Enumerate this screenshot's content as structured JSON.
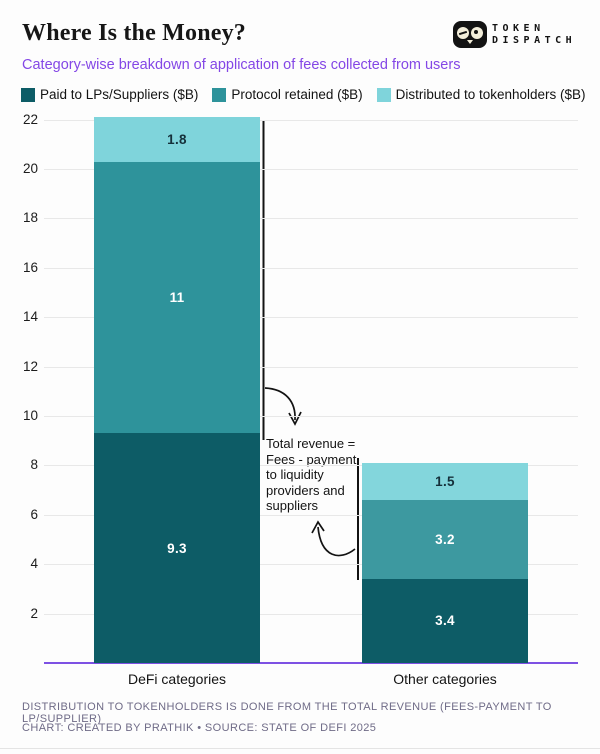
{
  "header": {
    "title": "Where Is the Money?",
    "subtitle": "Category-wise breakdown of application of fees collected from users",
    "logo": {
      "line1": "TOKEN",
      "line2": "DISPATCH"
    }
  },
  "legend": [
    {
      "label": "Paid to LPs/Suppliers ($B)",
      "color": "#0d5c66"
    },
    {
      "label": "Protocol retained ($B)",
      "color": "#2e939b"
    },
    {
      "label": "Distributed to tokenholders ($B)",
      "color": "#7fd4db"
    }
  ],
  "chart_data": {
    "type": "bar",
    "stacked": true,
    "title": "Where Is the Money?",
    "categories": [
      "DeFi categories",
      "Other categories"
    ],
    "series": [
      {
        "name": "Paid to LPs/Suppliers ($B)",
        "color": "#0d5c66",
        "text_color": "#ffffff",
        "values": [
          9.3,
          3.4
        ],
        "labels": [
          "9.3",
          "3.4"
        ]
      },
      {
        "name": "Protocol retained ($B)",
        "color": "#2e939b",
        "colors": [
          "#2e939b",
          "#3d99a0"
        ],
        "text_color": "#ffffff",
        "values": [
          11,
          3.2
        ],
        "labels": [
          "11",
          "3.2"
        ]
      },
      {
        "name": "Distributed to tokenholders ($B)",
        "color": "#7fd4db",
        "colors": [
          "#7fd4db",
          "#83d6dc"
        ],
        "text_color": "#15303a",
        "values": [
          1.8,
          1.5
        ],
        "labels": [
          "1.8",
          "1.5"
        ]
      }
    ],
    "y_ticks": [
      2,
      4,
      6,
      8,
      10,
      12,
      14,
      16,
      18,
      20,
      22
    ],
    "ylim": [
      0,
      22.5
    ],
    "grid": true,
    "legend_position": "top",
    "axis_color": "#7d51e3",
    "annotation": "Total revenue =\nFees - payment\nto liquidity\nproviders and\nsuppliers"
  },
  "footer": {
    "note": "DISTRIBUTION TO TOKENHOLDERS IS DONE FROM THE TOTAL REVENUE (FEES-PAYMENT TO LP/SUPPLIER)",
    "credit": "CHART: CREATED BY PRATHIK • SOURCE: STATE OF DEFI 2025"
  }
}
